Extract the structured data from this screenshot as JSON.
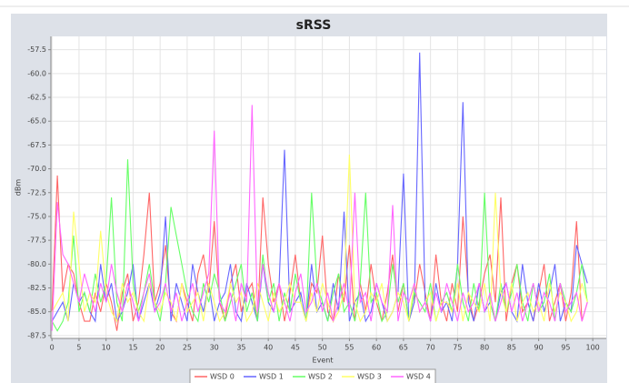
{
  "chart_data": {
    "type": "line",
    "title": "sRSS",
    "x_label": "Event",
    "y_label": "dBm",
    "x": [
      0,
      1,
      2,
      3,
      4,
      5,
      6,
      7,
      8,
      9,
      10,
      11,
      12,
      13,
      14,
      15,
      16,
      17,
      18,
      19,
      20,
      21,
      22,
      23,
      24,
      25,
      26,
      27,
      28,
      29,
      30,
      31,
      32,
      33,
      34,
      35,
      36,
      37,
      38,
      39,
      40,
      41,
      42,
      43,
      44,
      45,
      46,
      47,
      48,
      49,
      50,
      51,
      52,
      53,
      54,
      55,
      56,
      57,
      58,
      59,
      60,
      61,
      62,
      63,
      64,
      65,
      66,
      67,
      68,
      69,
      70,
      71,
      72,
      73,
      74,
      75,
      76,
      77,
      78,
      79,
      80,
      81,
      82,
      83,
      84,
      85,
      86,
      87,
      88,
      89,
      90,
      91,
      92,
      93,
      94,
      95,
      96,
      97,
      98,
      99
    ],
    "series": [
      {
        "name": "WSD 0",
        "color": "#ff6666",
        "values": [
          -85,
          -70.7,
          -83,
          -80,
          -81,
          -84,
          -86,
          -86,
          -83,
          -85,
          -82,
          -84,
          -87,
          -83,
          -81,
          -86,
          -84,
          -79,
          -72.5,
          -84,
          -82,
          -78,
          -85,
          -86,
          -82,
          -84,
          -86,
          -81,
          -79,
          -83,
          -75.5,
          -84,
          -86,
          -82,
          -80,
          -85,
          -83,
          -82,
          -86,
          -73,
          -80,
          -84,
          -82,
          -86,
          -83,
          -79,
          -84,
          -86,
          -82,
          -83,
          -77,
          -85,
          -86,
          -81,
          -84,
          -78,
          -86,
          -82,
          -85,
          -80,
          -84,
          -86,
          -83,
          -79,
          -85,
          -82,
          -86,
          -84,
          -80,
          -83,
          -86,
          -79,
          -84,
          -86,
          -82,
          -85,
          -75,
          -83,
          -86,
          -84,
          -81,
          -79,
          -84,
          -73,
          -86,
          -82,
          -80,
          -85,
          -84,
          -86,
          -83,
          -80,
          -86,
          -84,
          -82,
          -86,
          -83,
          -75.5,
          -86,
          -84
        ]
      },
      {
        "name": "WSD 1",
        "color": "#6666ff",
        "values": [
          -86,
          -85,
          -84,
          -86,
          -82,
          -84,
          -83,
          -85,
          -86,
          -80,
          -84,
          -82,
          -86,
          -85,
          -83,
          -80,
          -86,
          -84,
          -82,
          -85,
          -83,
          -75,
          -86,
          -82,
          -84,
          -86,
          -80,
          -83,
          -85,
          -82,
          -86,
          -84,
          -83,
          -80,
          -85,
          -86,
          -82,
          -84,
          -86,
          -80,
          -84,
          -85,
          -82,
          -68,
          -85,
          -84,
          -83,
          -86,
          -80,
          -85,
          -84,
          -86,
          -82,
          -85,
          -74.5,
          -86,
          -84,
          -83,
          -86,
          -85,
          -82,
          -84,
          -86,
          -85,
          -83,
          -70.5,
          -86,
          -84,
          -57.8,
          -84,
          -86,
          -82,
          -85,
          -84,
          -86,
          -80,
          -63,
          -84,
          -86,
          -82,
          -85,
          -84,
          -86,
          -83,
          -82,
          -85,
          -86,
          -80,
          -84,
          -86,
          -82,
          -85,
          -83,
          -80,
          -86,
          -84,
          -85,
          -78,
          -80,
          -82
        ]
      },
      {
        "name": "WSD 2",
        "color": "#66ff66",
        "values": [
          -86,
          -87,
          -86,
          -84,
          -77,
          -85,
          -83,
          -85,
          -81,
          -84,
          -82,
          -73,
          -84,
          -86,
          -69,
          -82,
          -85,
          -83,
          -80,
          -84,
          -86,
          -82,
          -74,
          -77,
          -80,
          -83,
          -85,
          -86,
          -82,
          -84,
          -81,
          -83,
          -86,
          -84,
          -82,
          -80,
          -85,
          -83,
          -86,
          -79,
          -84,
          -82,
          -86,
          -83,
          -85,
          -81,
          -84,
          -86,
          -72.5,
          -82,
          -84,
          -86,
          -83,
          -81,
          -85,
          -84,
          -86,
          -82,
          -72.5,
          -84,
          -83,
          -86,
          -85,
          -80,
          -84,
          -82,
          -86,
          -83,
          -84,
          -85,
          -82,
          -86,
          -84,
          -83,
          -85,
          -80,
          -84,
          -86,
          -82,
          -85,
          -72.5,
          -84,
          -86,
          -82,
          -85,
          -83,
          -80,
          -84,
          -86,
          -82,
          -85,
          -84,
          -81,
          -86,
          -82,
          -84,
          -85,
          -83,
          -80,
          -84
        ]
      },
      {
        "name": "WSD 3",
        "color": "#ffff66",
        "values": [
          -85,
          -84,
          -83,
          -86,
          -74.5,
          -80,
          -85,
          -83,
          -84,
          -76.5,
          -83,
          -85,
          -86,
          -82,
          -84,
          -83,
          -85,
          -86,
          -82,
          -84,
          -85,
          -83,
          -84,
          -86,
          -82,
          -85,
          -84,
          -83,
          -86,
          -82,
          -84,
          -86,
          -85,
          -82,
          -84,
          -83,
          -86,
          -85,
          -82,
          -84,
          -86,
          -83,
          -85,
          -84,
          -82,
          -84,
          -84,
          -86,
          -83,
          -85,
          -82,
          -84,
          -86,
          -85,
          -83,
          -68.5,
          -84,
          -86,
          -85,
          -83,
          -84,
          -82,
          -86,
          -85,
          -83,
          -84,
          -86,
          -82,
          -85,
          -84,
          -83,
          -86,
          -84,
          -84,
          -85,
          -82,
          -86,
          -83,
          -84,
          -85,
          -82,
          -86,
          -72.5,
          -83,
          -85,
          -82,
          -86,
          -84,
          -83,
          -85,
          -84,
          -86,
          -82,
          -85,
          -83,
          -84,
          -86,
          -85,
          -82,
          -84
        ]
      },
      {
        "name": "WSD 4",
        "color": "#ff66ff",
        "values": [
          -87,
          -73.5,
          -79,
          -80,
          -82,
          -84,
          -81,
          -83,
          -85,
          -82,
          -84,
          -80,
          -83,
          -85,
          -82,
          -84,
          -86,
          -83,
          -81,
          -85,
          -84,
          -82,
          -85,
          -83,
          -86,
          -84,
          -82,
          -85,
          -83,
          -81,
          -66,
          -84,
          -85,
          -83,
          -86,
          -82,
          -84,
          -63.3,
          -85,
          -80,
          -83,
          -85,
          -82,
          -84,
          -86,
          -83,
          -81,
          -85,
          -84,
          -82,
          -85,
          -83,
          -86,
          -84,
          -82,
          -85,
          -72.5,
          -84,
          -83,
          -86,
          -82,
          -84,
          -85,
          -73.8,
          -86,
          -83,
          -84,
          -82,
          -85,
          -84,
          -86,
          -83,
          -85,
          -82,
          -84,
          -86,
          -83,
          -85,
          -84,
          -82,
          -85,
          -83,
          -86,
          -84,
          -82,
          -85,
          -83,
          -86,
          -84,
          -82,
          -85,
          -83,
          -84,
          -86,
          -82,
          -85,
          -84,
          -83,
          -86,
          -84
        ]
      }
    ],
    "xlim": [
      -0.2,
      102.5
    ],
    "ylim": [
      -87.8,
      -56.1
    ],
    "xticks": [
      0,
      5,
      10,
      15,
      20,
      25,
      30,
      35,
      40,
      45,
      50,
      55,
      60,
      65,
      70,
      75,
      80,
      85,
      90,
      95,
      100
    ],
    "yticks": [
      -87.5,
      {
        "value": -85,
        "label": "-85.0"
      },
      -82.5,
      {
        "value": -80,
        "label": "-80.0"
      },
      -77.5,
      {
        "value": -75,
        "label": "-75.0"
      },
      -72.5,
      {
        "value": -70,
        "label": "-70.0"
      },
      -67.5,
      {
        "value": -65,
        "label": "-65.0"
      },
      -62.5,
      {
        "value": -60,
        "label": "-60.0"
      },
      -57.5
    ],
    "grid": true
  }
}
